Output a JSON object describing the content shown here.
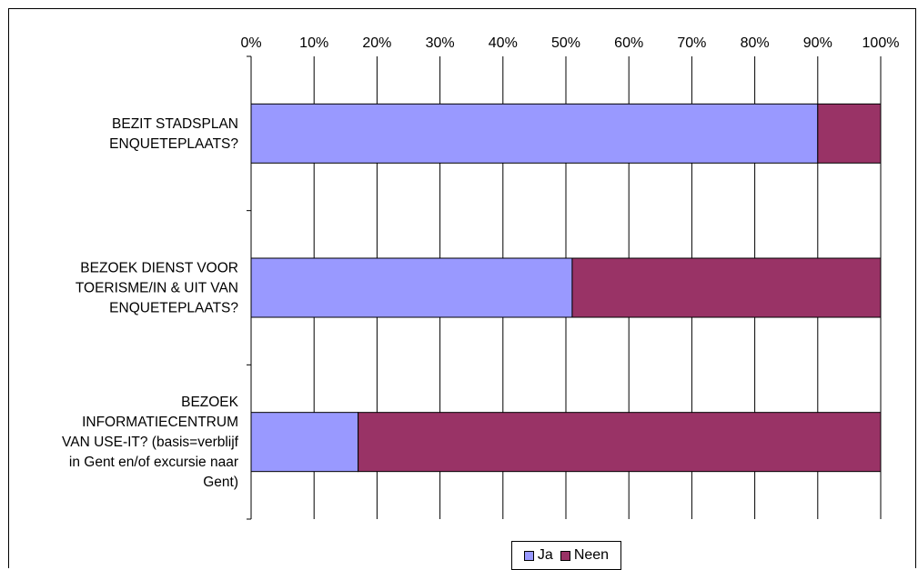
{
  "chart_data": {
    "type": "bar",
    "orientation": "horizontal",
    "stacked": "percent",
    "categories": [
      [
        "BEZIT STADSPLAN",
        "ENQUETEPLAATS?"
      ],
      [
        "BEZOEK DIENST VOOR",
        "TOERISME/IN & UIT VAN",
        "ENQUETEPLAATS?"
      ],
      [
        "BEZOEK",
        "INFORMATIECENTRUM",
        "VAN USE-IT? (basis=verblijf",
        "in Gent en/of excursie naar",
        "Gent)"
      ]
    ],
    "series": [
      {
        "name": "Ja",
        "values": [
          90,
          51,
          17
        ],
        "color": "#9999ff"
      },
      {
        "name": "Neen",
        "values": [
          10,
          49,
          83
        ],
        "color": "#993366"
      }
    ],
    "xlim": [
      0,
      100
    ],
    "xticks": [
      "0%",
      "10%",
      "20%",
      "30%",
      "40%",
      "50%",
      "60%",
      "70%",
      "80%",
      "90%",
      "100%"
    ],
    "grid": true,
    "legend": "bottom"
  }
}
